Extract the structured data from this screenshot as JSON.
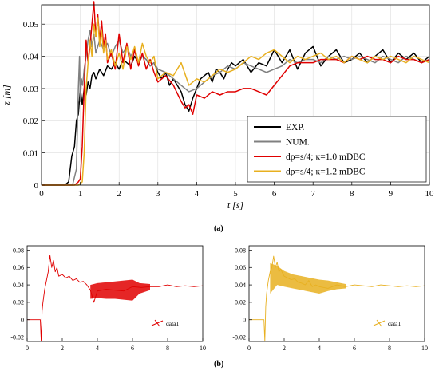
{
  "panel_labels": {
    "a": "(a)",
    "b": "(b)"
  },
  "chart_data": [
    {
      "id": "main",
      "type": "line",
      "xlabel": "t [s]",
      "ylabel": "z [m]",
      "xlim": [
        0,
        10
      ],
      "ylim": [
        0,
        0.056
      ],
      "xticks": [
        0,
        1,
        2,
        3,
        4,
        5,
        6,
        7,
        8,
        9,
        10
      ],
      "yticks": [
        0,
        0.01,
        0.02,
        0.03,
        0.04,
        0.05
      ],
      "ytick_labels": [
        "0",
        "0.01",
        "0.02",
        "0.03",
        "0.04",
        "0.05"
      ],
      "grid": true,
      "legend_position": "lower-right",
      "series": [
        {
          "name": "EXP.",
          "color": "#000000",
          "x": [
            0,
            0.6,
            0.7,
            0.78,
            0.85,
            0.9,
            0.95,
            1.0,
            1.05,
            1.1,
            1.15,
            1.2,
            1.25,
            1.3,
            1.35,
            1.4,
            1.5,
            1.6,
            1.7,
            1.8,
            1.9,
            2.0,
            2.1,
            2.2,
            2.3,
            2.4,
            2.5,
            2.6,
            2.7,
            2.8,
            2.9,
            3.0,
            3.1,
            3.2,
            3.3,
            3.4,
            3.5,
            3.6,
            3.7,
            3.8,
            3.9,
            4.0,
            4.1,
            4.2,
            4.3,
            4.4,
            4.5,
            4.6,
            4.7,
            4.8,
            4.9,
            5.0,
            5.2,
            5.4,
            5.6,
            5.8,
            6.0,
            6.2,
            6.4,
            6.6,
            6.8,
            7.0,
            7.2,
            7.4,
            7.6,
            7.8,
            8.0,
            8.2,
            8.4,
            8.6,
            8.8,
            9.0,
            9.2,
            9.4,
            9.6,
            9.8,
            10.0
          ],
          "y": [
            0,
            0,
            0.001,
            0.009,
            0.012,
            0.02,
            0.022,
            0.03,
            0.025,
            0.03,
            0.028,
            0.032,
            0.03,
            0.034,
            0.035,
            0.033,
            0.036,
            0.034,
            0.037,
            0.036,
            0.038,
            0.036,
            0.039,
            0.038,
            0.037,
            0.04,
            0.038,
            0.04,
            0.039,
            0.037,
            0.038,
            0.035,
            0.033,
            0.035,
            0.031,
            0.033,
            0.031,
            0.029,
            0.025,
            0.023,
            0.027,
            0.03,
            0.033,
            0.034,
            0.035,
            0.032,
            0.036,
            0.035,
            0.033,
            0.036,
            0.038,
            0.037,
            0.039,
            0.035,
            0.038,
            0.037,
            0.042,
            0.038,
            0.042,
            0.036,
            0.041,
            0.043,
            0.037,
            0.04,
            0.042,
            0.038,
            0.039,
            0.041,
            0.038,
            0.04,
            0.042,
            0.038,
            0.041,
            0.039,
            0.041,
            0.038,
            0.04
          ]
        },
        {
          "name": "NUM.",
          "color": "#808080",
          "x": [
            0,
            0.8,
            0.9,
            0.95,
            0.98,
            1.0,
            1.03,
            1.06,
            1.1,
            1.15,
            1.2,
            1.25,
            1.3,
            1.35,
            1.4,
            1.5,
            1.6,
            1.7,
            1.8,
            1.9,
            2.0,
            2.1,
            2.2,
            2.3,
            2.4,
            2.5,
            2.6,
            2.7,
            2.8,
            2.9,
            3.0,
            3.2,
            3.4,
            3.6,
            3.8,
            4.0,
            4.2,
            4.4,
            4.6,
            4.8,
            5.0,
            5.2,
            5.4,
            5.6,
            5.8,
            6.0,
            6.2,
            6.4,
            6.6,
            6.8,
            7.0,
            7.2,
            7.4,
            7.6,
            7.8,
            8.0,
            8.2,
            8.4,
            8.6,
            8.8,
            9.0,
            9.2,
            9.4,
            9.6,
            9.8,
            10.0
          ],
          "y": [
            0,
            0,
            0.005,
            0.03,
            0.04,
            0.026,
            0.033,
            0.031,
            0.036,
            0.04,
            0.045,
            0.048,
            0.043,
            0.047,
            0.041,
            0.045,
            0.042,
            0.044,
            0.04,
            0.043,
            0.045,
            0.041,
            0.043,
            0.04,
            0.042,
            0.038,
            0.04,
            0.039,
            0.037,
            0.038,
            0.036,
            0.035,
            0.033,
            0.031,
            0.029,
            0.03,
            0.032,
            0.034,
            0.035,
            0.037,
            0.036,
            0.038,
            0.037,
            0.036,
            0.035,
            0.036,
            0.037,
            0.039,
            0.038,
            0.039,
            0.039,
            0.038,
            0.04,
            0.039,
            0.04,
            0.039,
            0.04,
            0.039,
            0.038,
            0.04,
            0.039,
            0.038,
            0.04,
            0.039,
            0.038,
            0.039
          ]
        },
        {
          "name": "dp=s/4; κ=1.0 mDBC",
          "color": "#e00000",
          "x": [
            0,
            0.85,
            0.95,
            1.0,
            1.05,
            1.1,
            1.15,
            1.2,
            1.25,
            1.3,
            1.35,
            1.4,
            1.45,
            1.5,
            1.55,
            1.6,
            1.65,
            1.7,
            1.8,
            1.9,
            2.0,
            2.1,
            2.2,
            2.3,
            2.4,
            2.5,
            2.6,
            2.7,
            2.8,
            2.9,
            3.0,
            3.2,
            3.4,
            3.6,
            3.7,
            3.8,
            3.9,
            4.0,
            4.2,
            4.4,
            4.6,
            4.8,
            5.0,
            5.2,
            5.4,
            5.6,
            5.8,
            6.0,
            6.2,
            6.4,
            6.6,
            6.8,
            7.0,
            7.2,
            7.4,
            7.6,
            7.8,
            8.0,
            8.2,
            8.4,
            8.6,
            8.8,
            9.0,
            9.2,
            9.4,
            9.6,
            9.8,
            10.0
          ],
          "y": [
            0,
            0,
            0.001,
            0.002,
            0.012,
            0.03,
            0.045,
            0.038,
            0.043,
            0.05,
            0.057,
            0.046,
            0.053,
            0.045,
            0.051,
            0.043,
            0.047,
            0.038,
            0.041,
            0.036,
            0.047,
            0.038,
            0.044,
            0.036,
            0.042,
            0.037,
            0.041,
            0.036,
            0.039,
            0.035,
            0.032,
            0.034,
            0.031,
            0.026,
            0.024,
            0.025,
            0.022,
            0.028,
            0.027,
            0.029,
            0.028,
            0.029,
            0.029,
            0.03,
            0.03,
            0.029,
            0.028,
            0.031,
            0.034,
            0.037,
            0.038,
            0.038,
            0.038,
            0.039,
            0.039,
            0.039,
            0.038,
            0.04,
            0.039,
            0.04,
            0.039,
            0.039,
            0.038,
            0.04,
            0.039,
            0.039,
            0.038,
            0.039
          ]
        },
        {
          "name": "dp=s/4; κ=1.2 mDBC",
          "color": "#e8b020",
          "x": [
            0,
            0.95,
            1.05,
            1.1,
            1.15,
            1.2,
            1.25,
            1.3,
            1.35,
            1.4,
            1.45,
            1.5,
            1.55,
            1.6,
            1.65,
            1.7,
            1.8,
            1.9,
            2.0,
            2.1,
            2.2,
            2.3,
            2.4,
            2.5,
            2.6,
            2.7,
            2.8,
            2.9,
            3.0,
            3.2,
            3.4,
            3.6,
            3.8,
            4.0,
            4.2,
            4.4,
            4.6,
            4.8,
            5.0,
            5.2,
            5.4,
            5.6,
            5.8,
            6.0,
            6.2,
            6.4,
            6.6,
            6.8,
            7.0,
            7.2,
            7.4,
            7.6,
            7.8,
            8.0,
            8.2,
            8.4,
            8.6,
            8.8,
            9.0,
            9.2,
            9.4,
            9.6,
            9.8,
            10.0
          ],
          "y": [
            0,
            0,
            0.001,
            0.01,
            0.03,
            0.038,
            0.045,
            0.04,
            0.05,
            0.046,
            0.052,
            0.043,
            0.048,
            0.041,
            0.045,
            0.039,
            0.042,
            0.037,
            0.041,
            0.036,
            0.043,
            0.039,
            0.043,
            0.038,
            0.044,
            0.04,
            0.038,
            0.04,
            0.033,
            0.035,
            0.034,
            0.038,
            0.031,
            0.033,
            0.032,
            0.034,
            0.036,
            0.035,
            0.036,
            0.038,
            0.04,
            0.039,
            0.041,
            0.042,
            0.04,
            0.038,
            0.04,
            0.039,
            0.04,
            0.041,
            0.039,
            0.04,
            0.038,
            0.04,
            0.039,
            0.038,
            0.04,
            0.039,
            0.04,
            0.039,
            0.038,
            0.04,
            0.039,
            0.038
          ]
        }
      ]
    },
    {
      "id": "b1",
      "type": "line",
      "xlim": [
        0,
        10
      ],
      "ylim": [
        -0.025,
        0.085
      ],
      "xticks": [
        0,
        2,
        4,
        6,
        8,
        10
      ],
      "yticks": [
        -0.02,
        0,
        0.02,
        0.04,
        0.06,
        0.08
      ],
      "ytick_labels": [
        "-0.02",
        "0",
        "0.02",
        "0.04",
        "0.06",
        "0.08"
      ],
      "grid": false,
      "legend_position": "lower-right",
      "series": [
        {
          "name": "data1",
          "color": "#e00000",
          "x": [
            0,
            0.75,
            0.8,
            0.85,
            0.9,
            1.0,
            1.1,
            1.2,
            1.3,
            1.4,
            1.5,
            1.6,
            1.7,
            1.8,
            2.0,
            2.2,
            2.4,
            2.6,
            2.8,
            3.0,
            3.2,
            3.4,
            3.6,
            3.8,
            4.0,
            4.5,
            5.0,
            5.5,
            6.0,
            6.5,
            7.0,
            7.5,
            8.0,
            8.5,
            9.0,
            9.5,
            10.0
          ],
          "y": [
            0,
            0,
            -0.025,
            0.01,
            0.02,
            0.035,
            0.045,
            0.055,
            0.074,
            0.06,
            0.068,
            0.055,
            0.06,
            0.05,
            0.052,
            0.048,
            0.05,
            0.045,
            0.047,
            0.043,
            0.044,
            0.04,
            0.034,
            0.02,
            0.033,
            0.035,
            0.034,
            0.033,
            0.038,
            0.037,
            0.038,
            0.038,
            0.04,
            0.038,
            0.039,
            0.038,
            0.039
          ],
          "band_x": [
            3.6,
            4.0,
            4.5,
            5.0,
            5.5,
            6.0,
            6.4,
            7.0
          ],
          "band_min": [
            0.024,
            0.025,
            0.024,
            0.024,
            0.023,
            0.022,
            0.03,
            0.034
          ],
          "band_max": [
            0.04,
            0.042,
            0.043,
            0.044,
            0.045,
            0.046,
            0.042,
            0.041
          ]
        }
      ]
    },
    {
      "id": "b2",
      "type": "line",
      "xlim": [
        0,
        10
      ],
      "ylim": [
        -0.025,
        0.085
      ],
      "xticks": [
        0,
        2,
        4,
        6,
        8,
        10
      ],
      "yticks": [
        -0.02,
        0,
        0.02,
        0.04,
        0.06,
        0.08
      ],
      "ytick_labels": [
        "-0.02",
        "0",
        "0.02",
        "0.04",
        "0.06",
        "0.08"
      ],
      "grid": false,
      "legend_position": "lower-right",
      "series": [
        {
          "name": "data1",
          "color": "#e8b020",
          "x": [
            0,
            0.85,
            0.9,
            0.95,
            1.0,
            1.1,
            1.2,
            1.3,
            1.4,
            1.5,
            1.6,
            1.7,
            1.8,
            2.0,
            2.2,
            2.4,
            2.6,
            2.8,
            3.0,
            3.2,
            3.4,
            3.6,
            3.8,
            4.0,
            4.5,
            5.0,
            5.5,
            6.0,
            6.5,
            7.0,
            7.5,
            8.0,
            8.5,
            9.0,
            9.5,
            10.0
          ],
          "y": [
            0,
            0,
            -0.025,
            0.015,
            0.03,
            0.045,
            0.055,
            0.06,
            0.073,
            0.06,
            0.066,
            0.055,
            0.058,
            0.05,
            0.048,
            0.046,
            0.047,
            0.043,
            0.042,
            0.04,
            0.045,
            0.038,
            0.04,
            0.038,
            0.036,
            0.04,
            0.038,
            0.04,
            0.039,
            0.038,
            0.04,
            0.039,
            0.038,
            0.039,
            0.038,
            0.039
          ],
          "band_x": [
            1.2,
            1.6,
            2.0,
            2.5,
            3.0,
            3.5,
            4.0,
            4.5,
            5.0,
            5.5
          ],
          "band_min": [
            0.03,
            0.04,
            0.038,
            0.036,
            0.034,
            0.032,
            0.03,
            0.033,
            0.035,
            0.036
          ],
          "band_max": [
            0.065,
            0.062,
            0.056,
            0.052,
            0.05,
            0.048,
            0.046,
            0.045,
            0.043,
            0.041
          ]
        }
      ]
    }
  ]
}
